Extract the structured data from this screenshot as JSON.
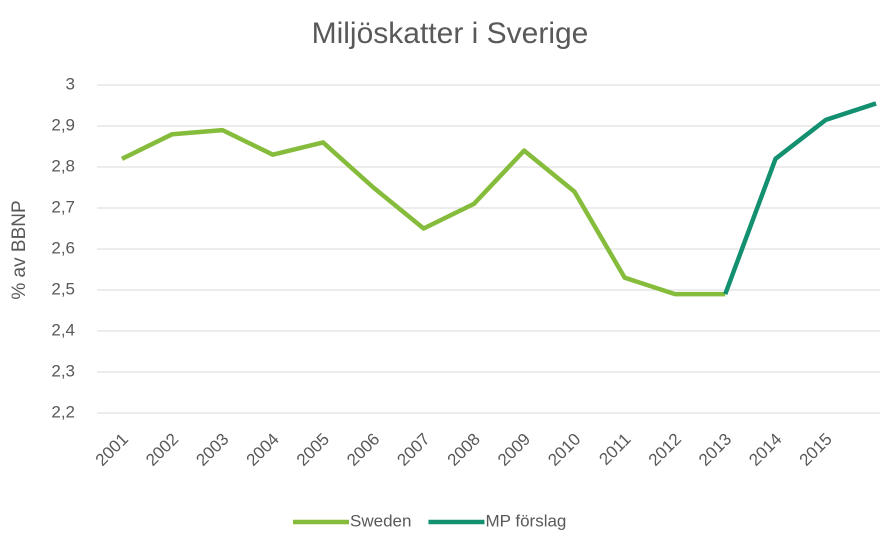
{
  "chart_data": {
    "type": "line",
    "title": "Miljöskatter i Sverige",
    "ylabel": "% av BBNP",
    "categories": [
      "2001",
      "2002",
      "2003",
      "2004",
      "2005",
      "2006",
      "2007",
      "2008",
      "2009",
      "2010",
      "2011",
      "2012",
      "2013",
      "2014",
      "2015",
      null
    ],
    "series": [
      {
        "name": "Sweden",
        "color": "#86bc3b",
        "values": [
          2.82,
          2.88,
          2.89,
          2.83,
          2.86,
          2.75,
          2.65,
          2.71,
          2.84,
          2.74,
          2.53,
          2.49,
          2.49,
          null,
          null,
          null
        ]
      },
      {
        "name": "MP förslag",
        "color": "#13906f",
        "values": [
          null,
          null,
          null,
          null,
          null,
          null,
          null,
          null,
          null,
          null,
          null,
          null,
          2.49,
          2.82,
          2.915,
          2.955
        ]
      }
    ],
    "ylim": [
      2.2,
      3
    ],
    "yticks": [
      {
        "value": 2.2,
        "label": "2,2"
      },
      {
        "value": 2.3,
        "label": "2,3"
      },
      {
        "value": 2.4,
        "label": "2,4"
      },
      {
        "value": 2.5,
        "label": "2,5"
      },
      {
        "value": 2.6,
        "label": "2,6"
      },
      {
        "value": 2.7,
        "label": "2,7"
      },
      {
        "value": 2.8,
        "label": "2,8"
      },
      {
        "value": 2.9,
        "label": "2,9"
      },
      3
    ],
    "grid": true,
    "legend": "bottom"
  }
}
